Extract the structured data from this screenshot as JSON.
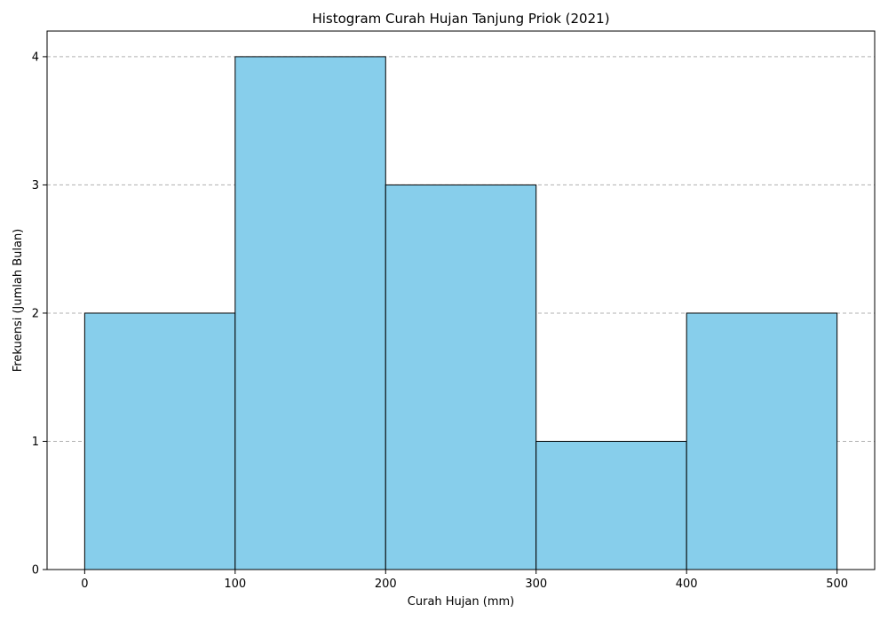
{
  "chart_data": {
    "type": "bar",
    "title": "Histogram Curah Hujan Tanjung Priok (2021)",
    "xlabel": "Curah Hujan (mm)",
    "ylabel": "Frekuensi (Jumlah Bulan)",
    "bins": [
      {
        "start": 0,
        "end": 100,
        "value": 2
      },
      {
        "start": 100,
        "end": 200,
        "value": 4
      },
      {
        "start": 200,
        "end": 300,
        "value": 3
      },
      {
        "start": 300,
        "end": 400,
        "value": 1
      },
      {
        "start": 400,
        "end": 500,
        "value": 2
      }
    ],
    "xlim": [
      -25,
      525
    ],
    "ylim": [
      0,
      4.2
    ],
    "xticks": [
      0,
      100,
      200,
      300,
      400,
      500
    ],
    "yticks": [
      0,
      1,
      2,
      3,
      4
    ],
    "grid": {
      "axis": "y",
      "style": "dashed"
    },
    "colors": {
      "bar_fill": "#87CEEB",
      "bar_edge": "#000000",
      "grid": "#b0b0b0",
      "axis": "#000000"
    }
  }
}
